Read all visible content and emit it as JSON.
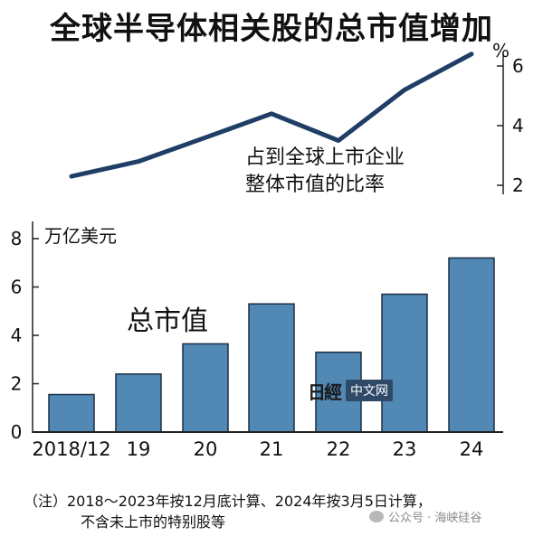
{
  "title": "全球半导体相关股的总市值增加",
  "chart_data": [
    {
      "type": "line",
      "x": [
        "2018/12",
        "19",
        "20",
        "21",
        "22",
        "23",
        "24"
      ],
      "series": [
        {
          "values": [
            2.3,
            2.8,
            3.6,
            4.4,
            3.5,
            5.2,
            6.4
          ]
        }
      ],
      "ylim": [
        2,
        6.6
      ],
      "unit": "%",
      "yticks": [
        "2",
        "4",
        "6"
      ],
      "annotation": [
        "占到全球上市企业",
        "整体市值的比率"
      ]
    },
    {
      "type": "bar",
      "categories": [
        "2018/12",
        "19",
        "20",
        "21",
        "22",
        "23",
        "24"
      ],
      "values": [
        1.55,
        2.4,
        3.65,
        5.3,
        3.3,
        5.7,
        7.2
      ],
      "ylim": [
        0,
        8.6
      ],
      "ylabel": "万亿美元",
      "yticks": [
        "0",
        "2",
        "4",
        "6",
        "8"
      ],
      "annotation": "总市值",
      "color": "#5188b4"
    }
  ],
  "notes": {
    "line1": "（注）2018～2023年按12月底计算、2024年按3月5日计算，",
    "line2": "不含未上市的特别股等"
  },
  "watermarks": {
    "nikkei_logo": "日經",
    "nikkei_box": "中文网",
    "wechat": "公众号 · 海峡硅谷",
    "wechat_icon": "wechat-icon"
  }
}
